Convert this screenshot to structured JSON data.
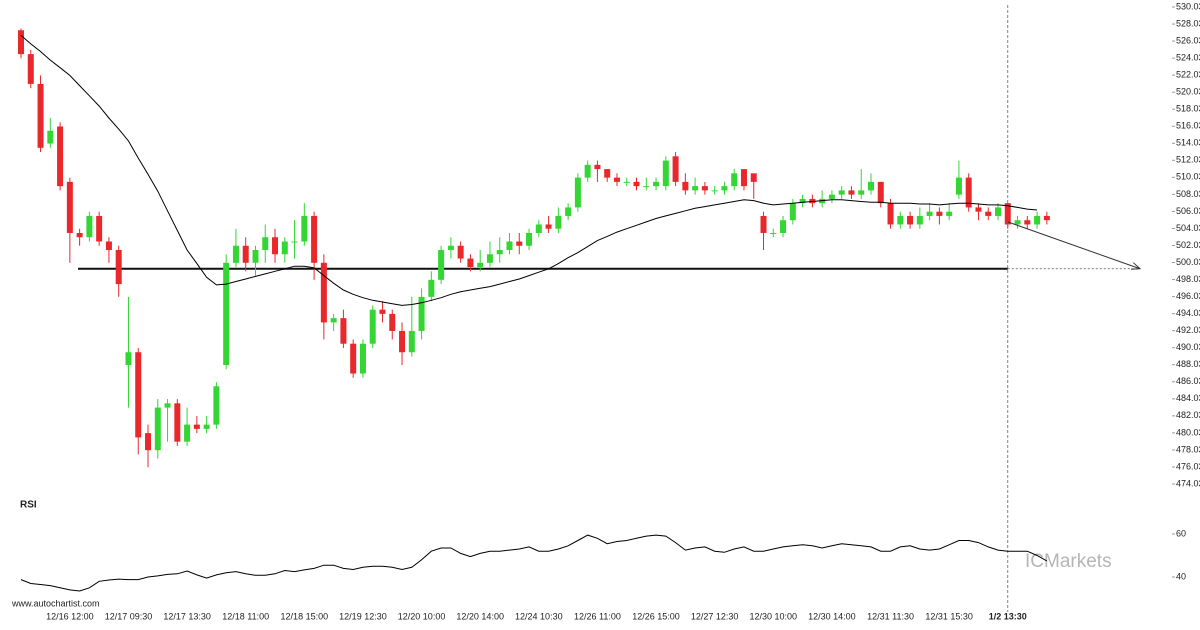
{
  "chart_data": {
    "type": "candlestick",
    "categories": [
      null,
      null,
      null,
      null,
      null,
      "12/16 12:00",
      null,
      null,
      null,
      null,
      null,
      "12/17 09:30",
      null,
      null,
      null,
      null,
      null,
      "12/17 13:30",
      null,
      null,
      null,
      null,
      null,
      "12/18 11:00",
      null,
      null,
      null,
      null,
      null,
      "12/18 15:00",
      null,
      null,
      null,
      null,
      null,
      "12/19 12:30",
      null,
      null,
      null,
      null,
      null,
      "12/20 10:00",
      null,
      null,
      null,
      null,
      null,
      "12/20 14:00",
      null,
      null,
      null,
      null,
      null,
      "12/24 10:30",
      null,
      null,
      null,
      null,
      null,
      "12/26 11:00",
      null,
      null,
      null,
      null,
      null,
      "12/26 15:00",
      null,
      null,
      null,
      null,
      null,
      "12/27 12:30",
      null,
      null,
      null,
      null,
      null,
      "12/30 10:00",
      null,
      null,
      null,
      null,
      null,
      "12/30 14:00",
      null,
      null,
      null,
      null,
      null,
      "12/31 11:30",
      null,
      null,
      null,
      null,
      null,
      "12/31 15:30",
      null,
      null,
      null,
      null,
      null,
      "1/2 13:30",
      null,
      null,
      null,
      null
    ],
    "open": [
      527.3,
      524.5,
      521,
      514,
      516,
      509.5,
      503.5,
      503,
      505.5,
      502.5,
      501.5,
      488,
      489.5,
      480,
      478,
      483,
      483.5,
      479,
      481,
      480.5,
      481,
      488,
      500,
      502,
      500,
      501.5,
      503,
      501,
      502.5,
      502.5,
      505.5,
      500,
      493,
      493.5,
      490.5,
      487,
      490.5,
      494.5,
      494,
      492,
      489.5,
      492,
      496,
      498,
      501.5,
      502,
      500.5,
      499.5,
      500,
      501,
      501.5,
      502.5,
      502,
      503.5,
      504.5,
      504,
      505.5,
      506.5,
      510,
      511.5,
      511,
      510,
      509.5,
      509.5,
      509,
      509,
      509,
      512.5,
      509.5,
      508.5,
      509,
      508.5,
      508.5,
      509,
      511,
      510.5,
      505.5,
      503.5,
      503.5,
      505,
      507,
      507.5,
      507,
      507.5,
      508,
      508.5,
      508,
      508.5,
      509.5,
      507,
      504.5,
      505.5,
      504.5,
      505.5,
      506,
      505.5,
      508,
      510,
      506.5,
      506,
      505.5,
      507,
      504.5,
      505,
      504.5,
      505.5
    ],
    "high": [
      527.5,
      525,
      522,
      517,
      516.5,
      510,
      504,
      506,
      506,
      503,
      502,
      496,
      490,
      481,
      484,
      484,
      484,
      483,
      482,
      482,
      486,
      501,
      504,
      503,
      502,
      504.5,
      504,
      503,
      505,
      507,
      506,
      501,
      494,
      494.5,
      491,
      491,
      495,
      495.5,
      494.5,
      493,
      496,
      497,
      499,
      502,
      503,
      502.5,
      501,
      501.5,
      502.5,
      503,
      503.5,
      503.5,
      504,
      505,
      505.5,
      506.5,
      507,
      510.5,
      512,
      512,
      511,
      510.5,
      510,
      510,
      510,
      510,
      512.5,
      513,
      510.5,
      510,
      509.5,
      509,
      509.5,
      511,
      511,
      510.5,
      506,
      504,
      505.5,
      507.5,
      508,
      508,
      508.5,
      508.5,
      509,
      509,
      511,
      510.5,
      509.5,
      507.5,
      506,
      506,
      506.5,
      507,
      506.5,
      507,
      512,
      510.5,
      507,
      506.5,
      507,
      507,
      505.5,
      505.5,
      506,
      506
    ],
    "low": [
      524,
      520.5,
      513,
      513.5,
      508.5,
      500,
      502,
      502.5,
      502,
      500,
      496,
      483,
      477.5,
      476,
      477,
      479,
      478.5,
      478.5,
      480,
      480,
      480.5,
      487.5,
      499.5,
      499,
      498.5,
      500,
      500,
      500,
      500.5,
      502,
      498,
      491,
      492,
      490,
      486.5,
      486.5,
      490,
      493,
      491,
      488,
      489,
      491,
      495.5,
      497.5,
      500.5,
      500,
      499,
      499,
      499.5,
      500,
      501,
      501,
      501.5,
      503,
      503.5,
      503.5,
      505,
      506,
      509.5,
      509.5,
      509.5,
      509,
      509,
      508.5,
      508.5,
      508.5,
      508.5,
      509,
      508,
      508,
      508,
      508,
      508,
      508.5,
      508.5,
      507.5,
      501.5,
      503,
      503,
      504.5,
      506.5,
      506.5,
      506.5,
      507,
      507.5,
      507.5,
      507.5,
      508,
      506.5,
      504,
      504,
      504,
      504,
      505,
      504.5,
      505,
      507.5,
      506,
      505,
      505,
      505,
      504,
      504,
      504,
      504,
      504.5
    ],
    "close": [
      524.5,
      521,
      513.5,
      515.5,
      509,
      503.5,
      503,
      505.5,
      502.5,
      501.5,
      497.5,
      489.5,
      479.5,
      478,
      483,
      483.5,
      479,
      481,
      480.5,
      481,
      485.5,
      500,
      502,
      500,
      501.5,
      503,
      501,
      502.5,
      502.5,
      505.5,
      500,
      493,
      493.5,
      490.5,
      487,
      490.5,
      494.5,
      494,
      492,
      489.5,
      492,
      496,
      498,
      501.5,
      502,
      500.5,
      499.5,
      500,
      501,
      501.5,
      502.5,
      502,
      503.5,
      504.5,
      504,
      505.5,
      506.5,
      510,
      511.5,
      511,
      510,
      509.5,
      509.5,
      509,
      509,
      509.5,
      512,
      509.5,
      508.5,
      509,
      508.5,
      508.5,
      509,
      510.5,
      509,
      509.5,
      503.5,
      503.5,
      505,
      507,
      507.5,
      507,
      507.5,
      508,
      508.5,
      508,
      508.5,
      509.5,
      507,
      504.5,
      505.5,
      504.5,
      505.5,
      506,
      505.5,
      506,
      510,
      506.5,
      506,
      505.5,
      506.5,
      504.5,
      505,
      504.5,
      505.5,
      505
    ],
    "up_color": "#33d633",
    "down_color": "#e8282b",
    "moving_average": {
      "color": "#000000",
      "values": [
        526.7,
        525.7,
        524.8,
        523.8,
        522.9,
        522.0,
        520.8,
        519.6,
        518.4,
        517.0,
        515.7,
        514.3,
        512.3,
        510.4,
        508.4,
        506.1,
        503.8,
        501.5,
        499.9,
        498.3,
        497.4,
        497.5,
        497.8,
        498.1,
        498.4,
        498.7,
        499.0,
        499.3,
        499.6,
        499.6,
        499.4,
        498.5,
        497.6,
        496.8,
        496.3,
        495.9,
        495.6,
        495.4,
        495.2,
        495.0,
        495.1,
        495.3,
        495.6,
        495.9,
        496.3,
        496.6,
        496.8,
        497.0,
        497.2,
        497.5,
        497.8,
        498.1,
        498.5,
        498.9,
        499.3,
        499.9,
        500.6,
        501.2,
        501.9,
        502.6,
        503.1,
        503.6,
        504.0,
        504.4,
        504.8,
        505.2,
        505.5,
        505.8,
        506.1,
        506.4,
        506.6,
        506.8,
        507.0,
        507.2,
        507.4,
        507.3,
        507.0,
        506.8,
        506.9,
        507.0,
        507.1,
        507.2,
        507.3,
        507.4,
        507.4,
        507.3,
        507.2,
        507.1,
        507.1,
        507.0,
        507.0,
        507.0,
        506.9,
        506.9,
        506.8,
        506.9,
        507.0,
        507.0,
        506.9,
        506.8,
        506.8,
        506.7,
        506.5,
        506.3,
        506.2,
        null
      ]
    },
    "support": 499.3,
    "forecast": [
      504.8,
      499.3
    ],
    "ylim": [
      474.03,
      530.03
    ],
    "yticks": [
      {
        "value": 474.03,
        "label": "474.0300"
      },
      {
        "value": 476.03,
        "label": "476.0300"
      },
      {
        "value": 478.03,
        "label": "478.0300"
      },
      {
        "value": 480.03,
        "label": "480.0300"
      },
      {
        "value": 482.03,
        "label": "482.0300"
      },
      {
        "value": 484.03,
        "label": "484.0300"
      },
      {
        "value": 486.03,
        "label": "486.0300"
      },
      {
        "value": 488.03,
        "label": "488.0300"
      },
      {
        "value": 490.03,
        "label": "490.0300"
      },
      {
        "value": 492.03,
        "label": "492.0300"
      },
      {
        "value": 494.03,
        "label": "494.0300"
      },
      {
        "value": 496.03,
        "label": "496.0300"
      },
      {
        "value": 498.03,
        "label": "498.0300"
      },
      {
        "value": 500.03,
        "label": "500.0300"
      },
      {
        "value": 502.03,
        "label": "502.0300"
      },
      {
        "value": 504.03,
        "label": "504.0300"
      },
      {
        "value": 506.03,
        "label": "506.0300"
      },
      {
        "value": 508.03,
        "label": "508.0300"
      },
      {
        "value": 510.03,
        "label": "510.0300"
      },
      {
        "value": 512.03,
        "label": "512.0300"
      },
      {
        "value": 514.03,
        "label": "514.0300"
      },
      {
        "value": 516.03,
        "label": "516.0300"
      },
      {
        "value": 518.03,
        "label": "518.0300"
      },
      {
        "value": 520.03,
        "label": "520.0300"
      },
      {
        "value": 522.03,
        "label": "522.0300"
      },
      {
        "value": 524.03,
        "label": "524.0300"
      },
      {
        "value": 526.03,
        "label": "526.0300"
      },
      {
        "value": 528.03,
        "label": "528.0300"
      },
      {
        "value": 530.03,
        "label": "530.0300"
      }
    ],
    "rsi": {
      "label": "RSI",
      "color": "#000000",
      "ylim": [
        30,
        70
      ],
      "yticks": [
        40,
        60
      ],
      "values": [
        38.8,
        37.0,
        36.5,
        36.0,
        35.0,
        34.0,
        33.5,
        35.0,
        38.0,
        38.6,
        39.0,
        38.8,
        38.8,
        40.0,
        40.5,
        41.2,
        41.5,
        42.8,
        41.0,
        39.5,
        41.0,
        42.0,
        42.5,
        41.5,
        40.8,
        40.8,
        41.5,
        43.0,
        42.5,
        43.3,
        44.0,
        45.5,
        45.5,
        44.0,
        43.5,
        44.5,
        45.0,
        45.0,
        44.5,
        43.5,
        44.5,
        48.0,
        52.0,
        53.5,
        53.5,
        51.0,
        49.5,
        51.0,
        52.0,
        52.0,
        52.5,
        53.0,
        54.0,
        52.0,
        52.0,
        53.0,
        54.5,
        57.0,
        59.5,
        58.0,
        55.5,
        56.5,
        57.0,
        58.0,
        59.0,
        59.5,
        59.0,
        56.0,
        52.5,
        53.5,
        54.0,
        52.0,
        51.5,
        53.0,
        54.0,
        52.0,
        52.0,
        53.0,
        54.0,
        54.5,
        55.0,
        54.5,
        53.5,
        54.5,
        55.5,
        55.0,
        54.5,
        54.0,
        52.0,
        52.0,
        54.0,
        54.5,
        53.0,
        52.5,
        53.0,
        55.0,
        57.0,
        57.0,
        56.0,
        54.0,
        52.5,
        52.0,
        52.0,
        52.0,
        50.0,
        47.5
      ]
    },
    "source": "www.autochartist.com",
    "watermark": "ICMarkets"
  }
}
